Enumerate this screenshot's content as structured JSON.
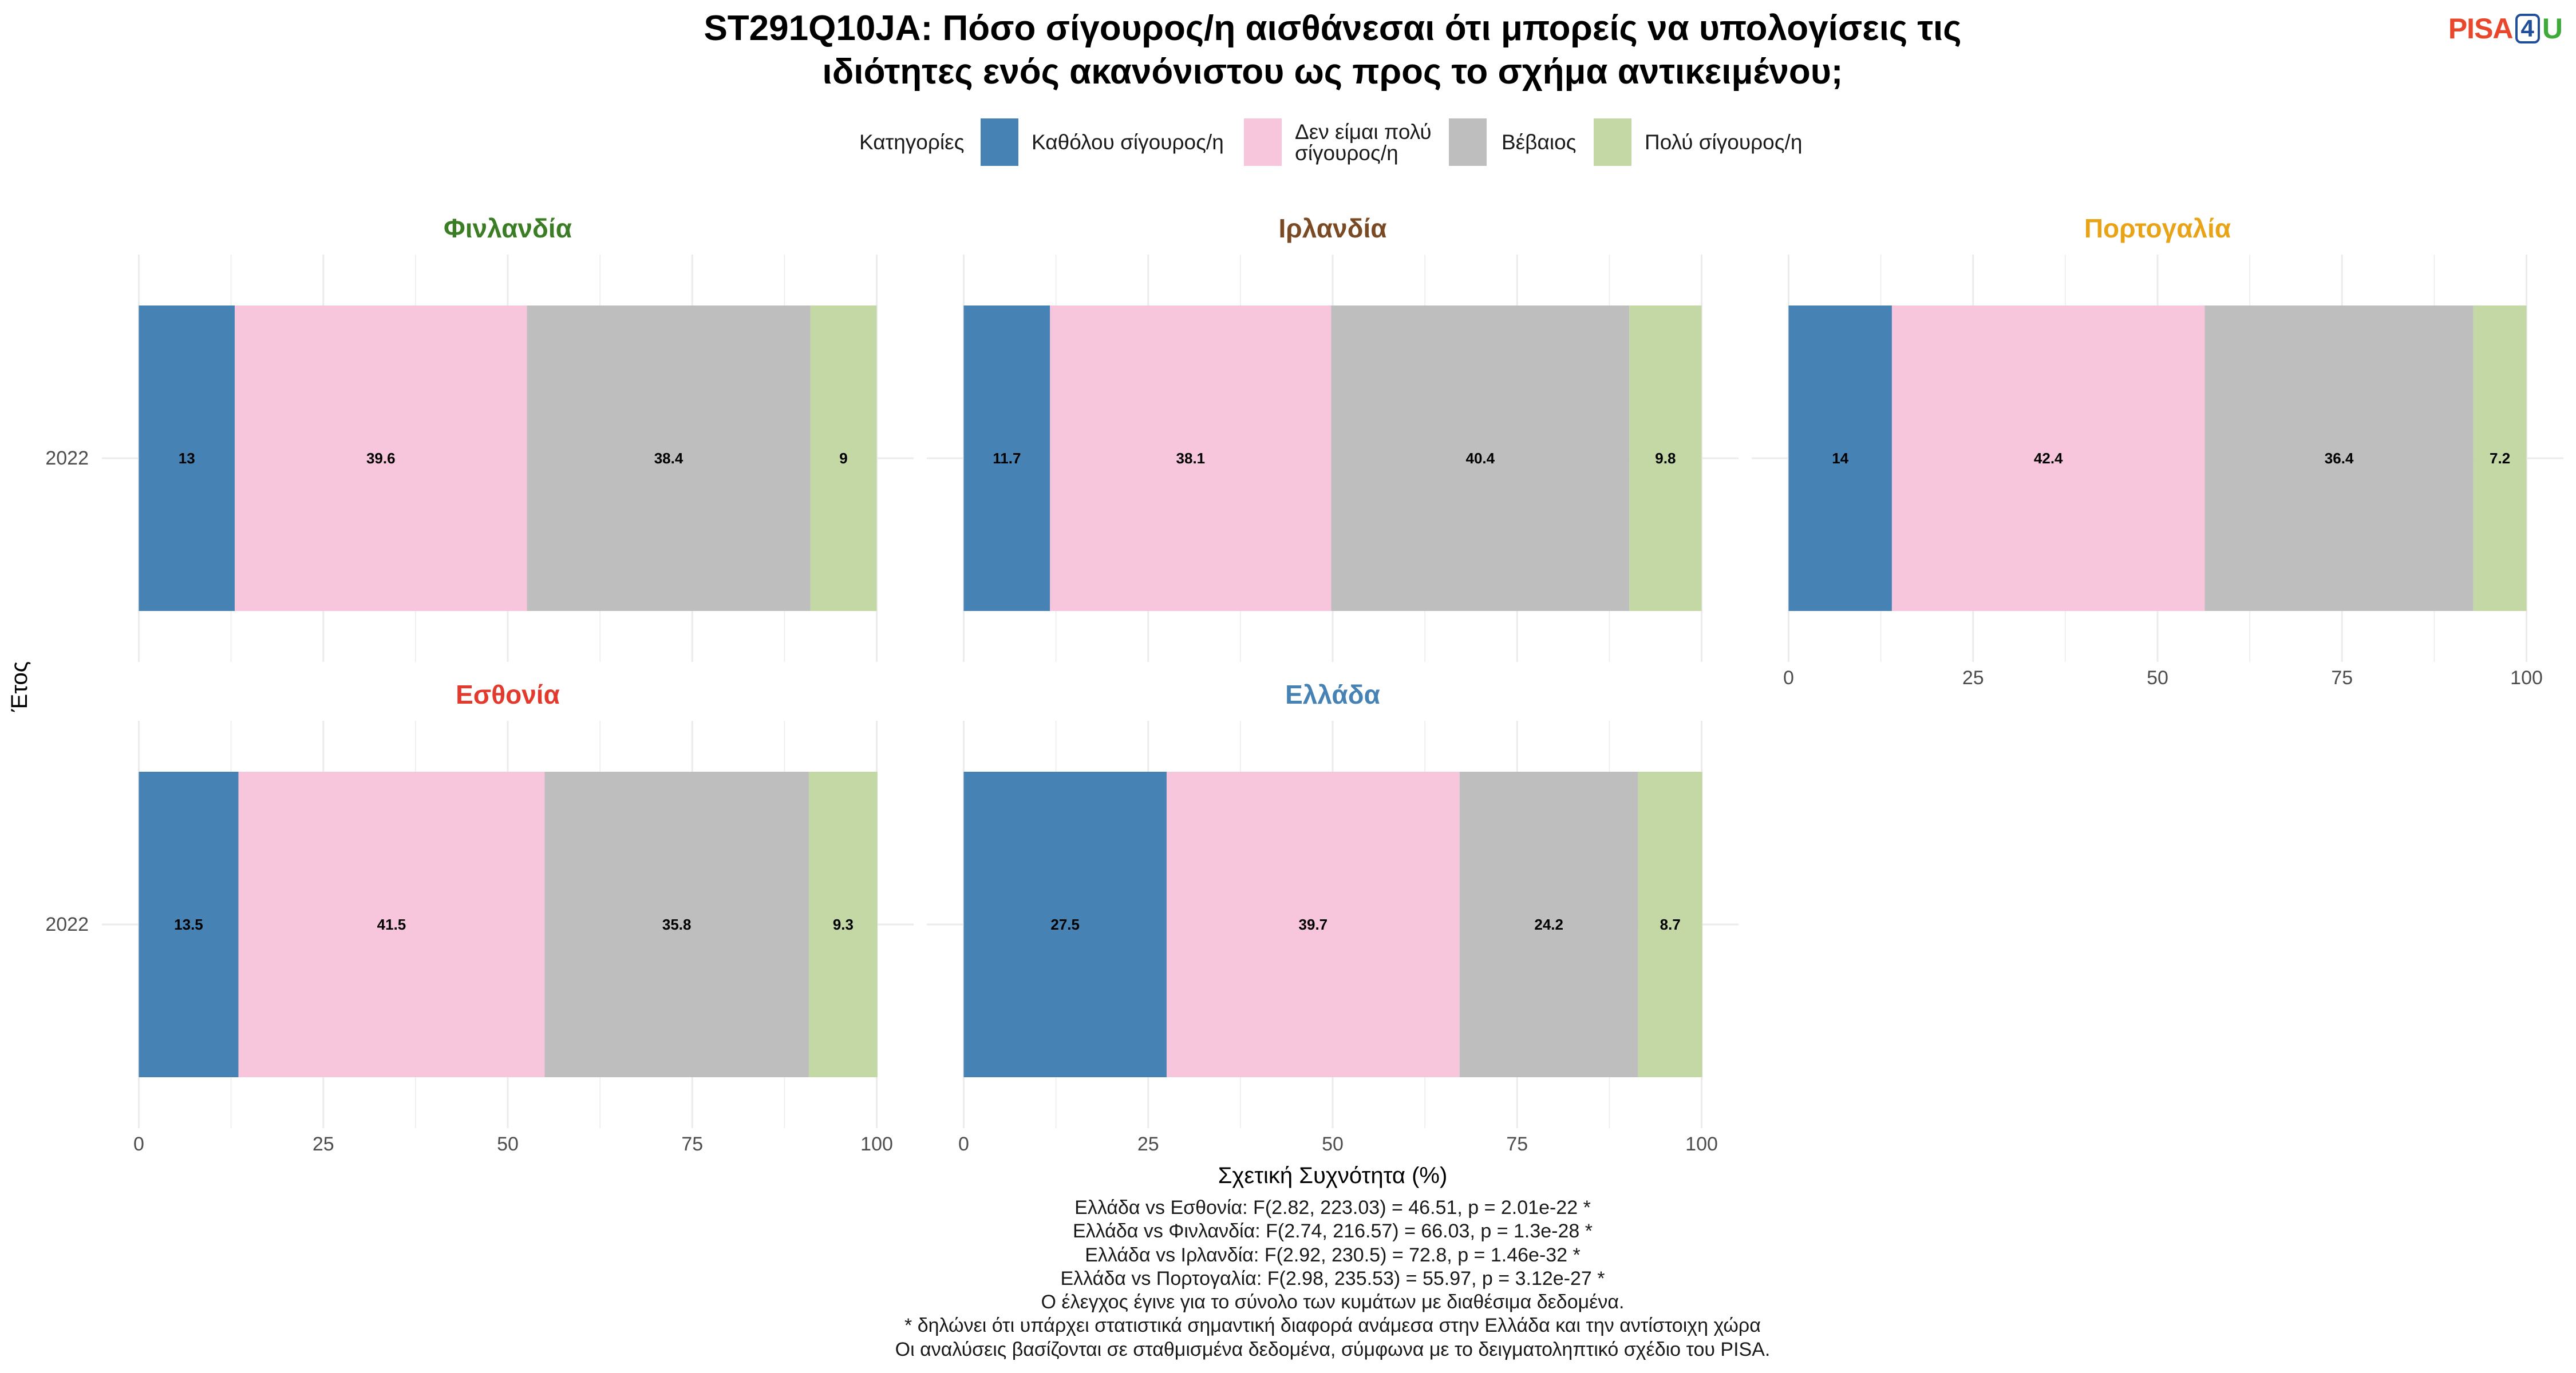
{
  "title": {
    "lines": [
      "ST291Q10JA: Πόσο σίγουρος/η αισθάνεσαι ότι μπορείς να υπολογίσεις τις",
      "ιδιότητες ενός ακανόνιστου ως προς το σχήμα αντικειμένου;"
    ]
  },
  "logo": {
    "parts": [
      "PISA",
      "4",
      "U"
    ],
    "colors": [
      "#E8472B",
      "#1F4E9B",
      "#3DAA3A"
    ]
  },
  "chart_data": {
    "type": "bar",
    "orientation": "horizontal",
    "stacked": true,
    "xlabel": "Σχετική Συχνότητα (%)",
    "ylabel": "Έτος",
    "xlim": [
      0,
      100
    ],
    "xticks": [
      0,
      25,
      50,
      75,
      100
    ],
    "categories": [
      "2022"
    ],
    "grid": true,
    "legend": {
      "title": "Κατηγορίες",
      "position": "top"
    },
    "series": [
      {
        "name": "Καθόλου σίγουρος/η",
        "color": "#4682B4"
      },
      {
        "name": "Δεν είμαι πολύ σίγουρος/η",
        "color": "#F7C6DC"
      },
      {
        "name": "Βέβαιος",
        "color": "#BEBEBE"
      },
      {
        "name": "Πολύ σίγουρος/η",
        "color": "#C3D8A4"
      }
    ],
    "facets": [
      {
        "name": "Φινλανδία",
        "title_color": "#3A7D24",
        "values": [
          13,
          39.6,
          38.4,
          9
        ]
      },
      {
        "name": "Ιρλανδία",
        "title_color": "#7A4A24",
        "values": [
          11.7,
          38.1,
          40.4,
          9.8
        ]
      },
      {
        "name": "Πορτογαλία",
        "title_color": "#E8A317",
        "values": [
          14,
          42.4,
          36.4,
          7.2
        ]
      },
      {
        "name": "Εσθονία",
        "title_color": "#E23B2E",
        "values": [
          13.5,
          41.5,
          35.8,
          9.3
        ]
      },
      {
        "name": "Ελλάδα",
        "title_color": "#4682B4",
        "values": [
          27.5,
          39.7,
          24.2,
          8.7
        ]
      }
    ]
  },
  "footnotes": [
    "Ελλάδα vs Εσθονία: F(2.82, 223.03) = 46.51, p = 2.01e-22 *",
    "Ελλάδα vs Φινλανδία: F(2.74, 216.57) = 66.03, p = 1.3e-28 *",
    "Ελλάδα vs Ιρλανδία: F(2.92, 230.5) = 72.8, p = 1.46e-32 *",
    "Ελλάδα vs Πορτογαλία: F(2.98, 235.53) = 55.97, p = 3.12e-27 *",
    "Ο έλεγχος έγινε για το σύνολο των κυμάτων με διαθέσιμα δεδομένα.",
    "* δηλώνει ότι υπάρχει στατιστικά σημαντική διαφορά ανάμεσα στην Ελλάδα και την αντίστοιχη χώρα",
    "Οι αναλύσεις βασίζονται σε σταθμισμένα δεδομένα, σύμφωνα με το δειγματοληπτικό σχέδιο του PISA."
  ]
}
